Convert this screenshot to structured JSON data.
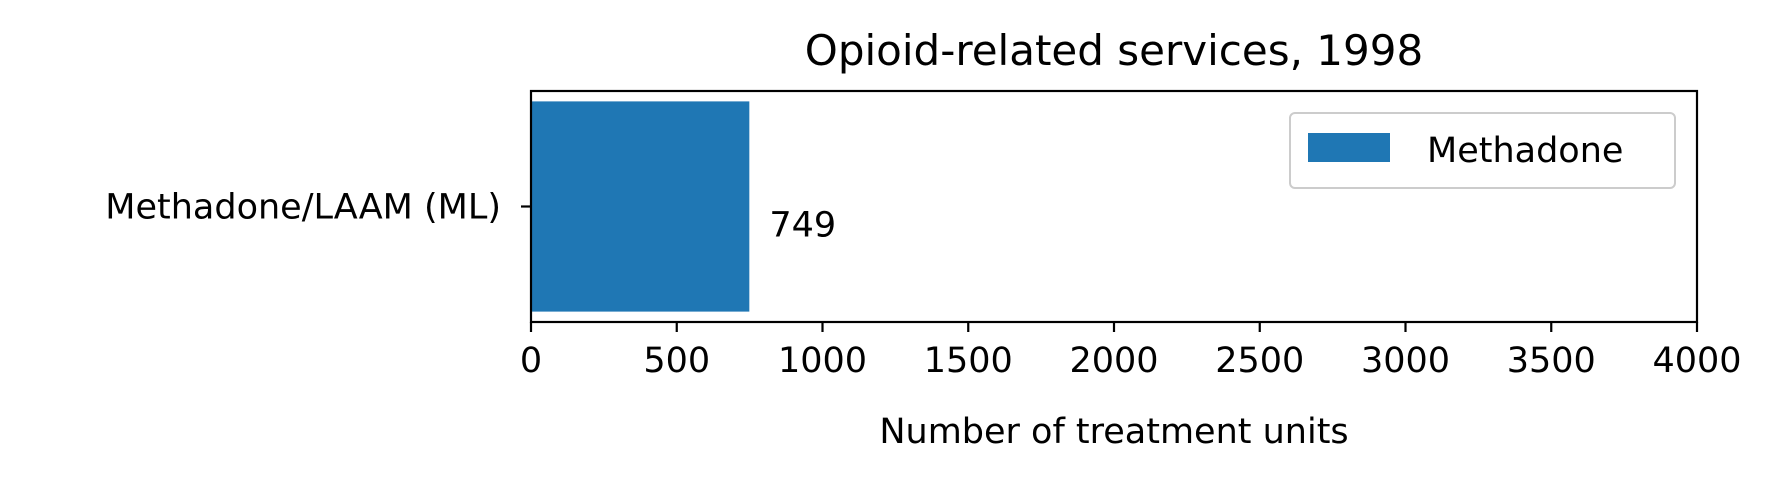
{
  "chart_data": {
    "type": "bar",
    "orientation": "horizontal",
    "title": "Opioid-related services, 1998",
    "xlabel": "Number of treatment units",
    "ylabel": "",
    "categories": [
      "Methadone/LAAM (ML)"
    ],
    "series": [
      {
        "name": "Methadone",
        "values": [
          749
        ],
        "color": "#1f77b4"
      }
    ],
    "data_labels": [
      "749"
    ],
    "xlim": [
      0,
      4000
    ],
    "xticks": [
      0,
      500,
      1000,
      1500,
      2000,
      2500,
      3000,
      3500,
      4000
    ],
    "grid": false,
    "legend": {
      "position": "top-right",
      "entries": [
        "Methadone"
      ]
    }
  }
}
